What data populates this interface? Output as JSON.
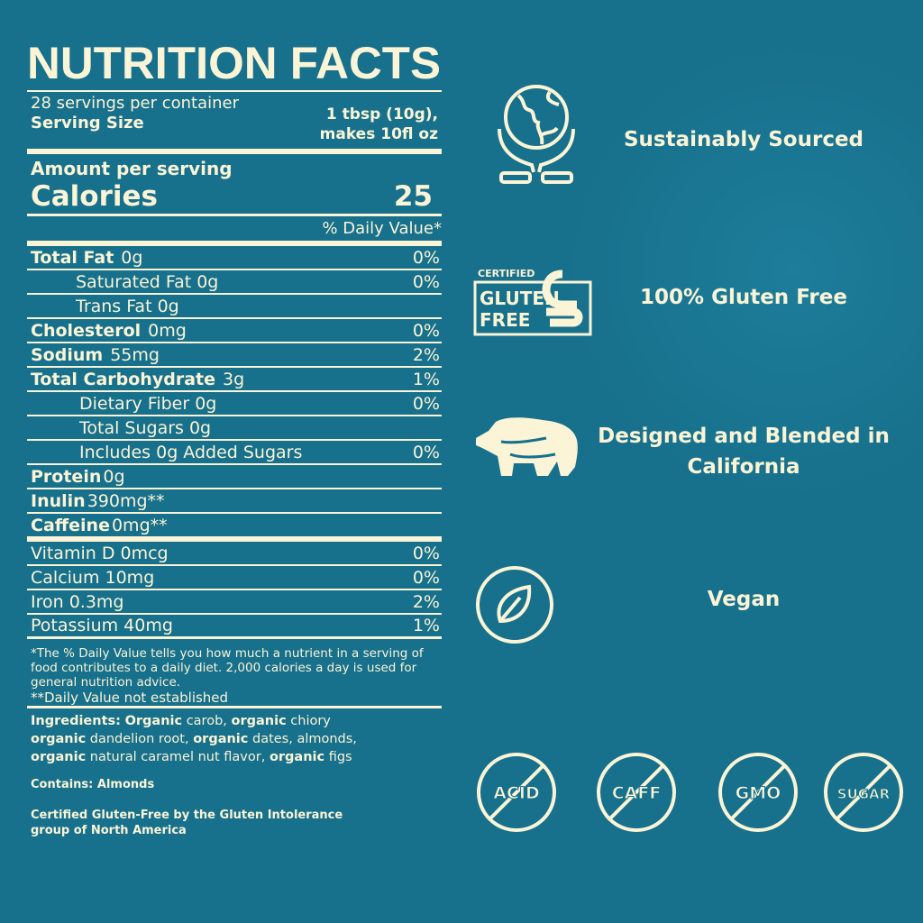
{
  "colors": {
    "background": "#17708c",
    "text": "#fbf4d6"
  },
  "nutrition": {
    "title": "NUTRITION FACTS",
    "servings_per_container": "28 servings per container",
    "serving_size_label": "Serving Size",
    "serving_size_value_1": "1 tbsp (10g),",
    "serving_size_value_2": "makes 10fl oz",
    "amount_per_serving": "Amount per serving",
    "calories_label": "Calories",
    "calories_value": "25",
    "daily_value_header": "% Daily Value*",
    "rows": [
      {
        "label": "Total Fat",
        "amount": "0g",
        "dv": "0%"
      },
      {
        "label": "Saturated Fat 0g",
        "amount": "",
        "dv": "0%"
      },
      {
        "label": "Trans Fat 0g",
        "amount": "",
        "dv": ""
      },
      {
        "label": "Cholesterol",
        "amount": "0mg",
        "dv": "0%"
      },
      {
        "label": "Sodium",
        "amount": "55mg",
        "dv": "2%"
      },
      {
        "label": "Total Carbohydrate",
        "amount": "3g",
        "dv": "1%"
      },
      {
        "label": "Dietary Fiber 0g",
        "amount": "",
        "dv": "0%"
      },
      {
        "label": "Total Sugars 0g",
        "amount": "",
        "dv": ""
      },
      {
        "label": "Includes 0g Added Sugars",
        "amount": "",
        "dv": "0%"
      },
      {
        "label": "Protein",
        "amount": "0g",
        "dv": ""
      },
      {
        "label": "Inulin",
        "amount": "390mg**",
        "dv": ""
      },
      {
        "label": "Caffeine",
        "amount": "0mg**",
        "dv": ""
      },
      {
        "label": "Vitamin D 0mcg",
        "amount": "",
        "dv": "0%"
      },
      {
        "label": "Calcium 10mg",
        "amount": "",
        "dv": "0%"
      },
      {
        "label": "Iron 0.3mg",
        "amount": "",
        "dv": "2%"
      },
      {
        "label": "Potassium 40mg",
        "amount": "",
        "dv": "1%"
      }
    ],
    "footnote_1": "*The % Daily Value tells you how much a nutrient in a serving of food contributes to a daily diet. 2,000 calories a day is used for general nutrition advice.",
    "footnote_2": "**Daily Value not established",
    "ingredients": {
      "label": "Ingredients:",
      "parts": [
        "Organic",
        " carob, ",
        "organic",
        " chiory ",
        "organic",
        " dandelion root, ",
        "organic",
        " dates, almonds, ",
        "organic",
        " natural caramel nut flavor, ",
        "organic",
        " figs"
      ]
    },
    "contains": "Contains: Almonds",
    "certification": "Certified Gluten-Free by the Gluten Intolerance group of North America"
  },
  "features": [
    {
      "icon": "globe-hands-icon",
      "label": "Sustainably Sourced"
    },
    {
      "icon": "certified-gluten-free-icon",
      "label": "100% Gluten Free",
      "badge_text": [
        "CERTIFIED",
        "GLUTEN",
        "FREE"
      ]
    },
    {
      "icon": "bear-icon",
      "label": "Designed and Blended in California"
    },
    {
      "icon": "leaf-icon",
      "label": "Vegan"
    }
  ],
  "free_from": [
    "ACID",
    "CAFF",
    "GMO",
    "SUGAR"
  ]
}
